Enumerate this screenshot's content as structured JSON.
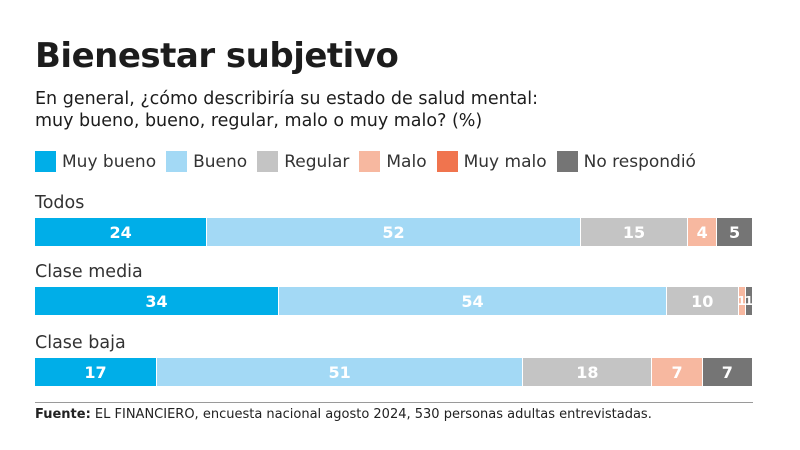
{
  "header": {
    "title": "Bienestar subjetivo",
    "subtitle_line1": "En general, ¿cómo describiría su estado de salud mental:",
    "subtitle_line2": "muy bueno, bueno, regular, malo o muy malo? (%)"
  },
  "footer": {
    "source_label": "Fuente:",
    "source_text": " EL FINANCIERO, encuesta nacional agosto 2024, 530 personas adultas entrevistadas."
  },
  "chart_data": {
    "type": "bar",
    "orientation": "horizontal",
    "stacked": true,
    "title": "Bienestar subjetivo",
    "subtitle": "En general, ¿cómo describiría su estado de salud mental: muy bueno, bueno, regular, malo o muy malo? (%)",
    "unit": "%",
    "xlim": [
      0,
      100
    ],
    "legend_position": "top",
    "categories": [
      "Todos",
      "Clase media",
      "Clase baja"
    ],
    "series": [
      {
        "name": "Muy bueno",
        "color": "#00aee8",
        "values": [
          24,
          34,
          17
        ]
      },
      {
        "name": "Bueno",
        "color": "#a3d9f5",
        "values": [
          52,
          54,
          51
        ]
      },
      {
        "name": "Regular",
        "color": "#c4c4c4",
        "values": [
          15,
          10,
          18
        ]
      },
      {
        "name": "Malo",
        "color": "#f7b8a0",
        "values": [
          4,
          1,
          7
        ]
      },
      {
        "name": "Muy malo",
        "color": "#f0744e",
        "values": [
          0,
          0,
          0
        ]
      },
      {
        "name": "No respondió",
        "color": "#757575",
        "values": [
          5,
          1,
          7
        ]
      }
    ]
  }
}
